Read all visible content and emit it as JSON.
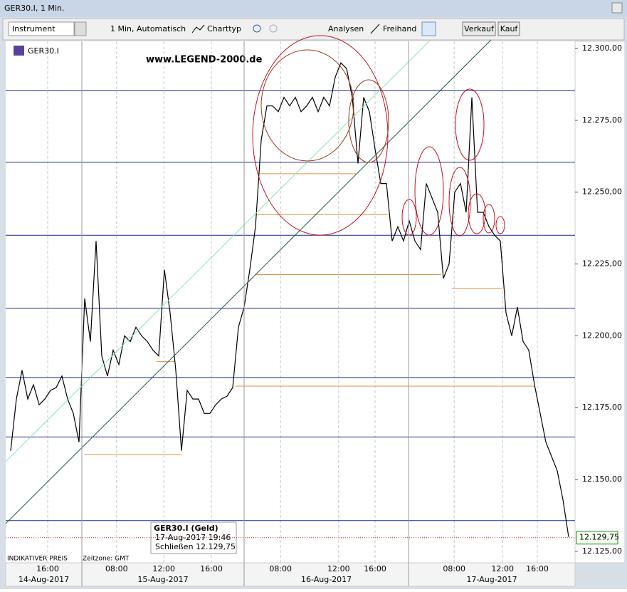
{
  "window": {
    "title": "GER30.I, 1 Min."
  },
  "toolbar": {
    "instrument": "Instrument",
    "interval": "1 Min,  Automatisch",
    "chart_type": "Charttyp",
    "analyses": "Analysen",
    "freehand": "Freihand",
    "sell": "Verkauf",
    "buy": "Kauf"
  },
  "chart_data": {
    "type": "line",
    "instrument": "GER30.I",
    "watermark": "www.LEGEND-2000.de",
    "footer_note": "INDIKATIVER PREIS",
    "timezone": "Zeitzone: GMT",
    "color": "#000000",
    "values": [
      12160,
      12178,
      12188,
      12178,
      12183,
      12176,
      12178,
      12181,
      12182,
      12186,
      12178,
      12173,
      12163,
      12213,
      12198,
      12233,
      12193,
      12186,
      12195,
      12190,
      12200,
      12198,
      12203,
      12200,
      12198,
      12195,
      12193,
      12223,
      12208,
      12188,
      12160,
      12181,
      12178,
      12178,
      12173,
      12173,
      12176,
      12178,
      12179,
      12182,
      12203,
      12210,
      12223,
      12238,
      12268,
      12280,
      12280,
      12278,
      12283,
      12280,
      12283,
      12278,
      12280,
      12283,
      12278,
      12283,
      12280,
      12290,
      12295,
      12293,
      12283,
      12260,
      12283,
      12278,
      12265,
      12253,
      12253,
      12233,
      12238,
      12233,
      12240,
      12233,
      12230,
      12253,
      12248,
      12243,
      12220,
      12225,
      12250,
      12253,
      12243,
      12283,
      12243,
      12243,
      12238,
      12235,
      12233,
      12208,
      12200,
      12210,
      12198,
      12195,
      12183,
      12173,
      12163,
      12158,
      12153,
      12143,
      12130
    ],
    "xlim": [
      -0.875,
      99.125
    ],
    "ylim": [
      12121,
      12302.5
    ],
    "yticks": [
      {
        "value": 12125,
        "label": "12.125,00"
      },
      {
        "value": 12150,
        "label": "12.150,00"
      },
      {
        "value": 12175,
        "label": "12.175,00"
      },
      {
        "value": 12200,
        "label": "12.200,00"
      },
      {
        "value": 12225,
        "label": "12.225,00"
      },
      {
        "value": 12250,
        "label": "12.250,00"
      },
      {
        "value": 12275,
        "label": "12.275,00"
      },
      {
        "value": 12300,
        "label": "12.300,00"
      }
    ],
    "xticks": [
      {
        "value": 6.5,
        "label": "16:00"
      },
      {
        "value": 18.6,
        "label": "08:00"
      },
      {
        "value": 26.9,
        "label": "12:00"
      },
      {
        "value": 35.25,
        "label": "16:00"
      },
      {
        "value": 47.4,
        "label": "08:00"
      },
      {
        "value": 57.6,
        "label": "12:00"
      },
      {
        "value": 64,
        "label": "16:00"
      },
      {
        "value": 77.9,
        "label": "08:00"
      },
      {
        "value": 86.4,
        "label": "12:00"
      },
      {
        "value": 92.5,
        "label": "16:00"
      }
    ],
    "days": [
      {
        "start": -0.875,
        "label": "14-Aug-2017"
      },
      {
        "start": 12.5,
        "label": "15-Aug-2017"
      },
      {
        "start": 41,
        "label": "16-Aug-2017"
      },
      {
        "start": 69.9,
        "label": "17-Aug-2017"
      }
    ],
    "hlines": [
      12285.3,
      12260.4,
      12235,
      12209.6,
      12185.5,
      12164.8,
      12135.7
    ],
    "levels": [
      {
        "from": 12.9,
        "to": 30,
        "value": 12158.6
      },
      {
        "from": 25.6,
        "to": 28.75,
        "value": 12191
      },
      {
        "from": 39.4,
        "to": 92.1,
        "value": 12182.5
      },
      {
        "from": 42.9,
        "to": 75.6,
        "value": 12221.3
      },
      {
        "from": 43.1,
        "to": 66.25,
        "value": 12242.2
      },
      {
        "from": 43.75,
        "to": 60.6,
        "value": 12256.4
      },
      {
        "from": 77.5,
        "to": 86.25,
        "value": 12216.6
      }
    ],
    "last_price": {
      "value": 12129.75,
      "label": "12.129,75"
    },
    "tooltip": {
      "title": "GER30.I (Geld)",
      "date": "17-Aug-2017 19:46",
      "close_label": "Schließen",
      "close": "12.129,75"
    }
  }
}
